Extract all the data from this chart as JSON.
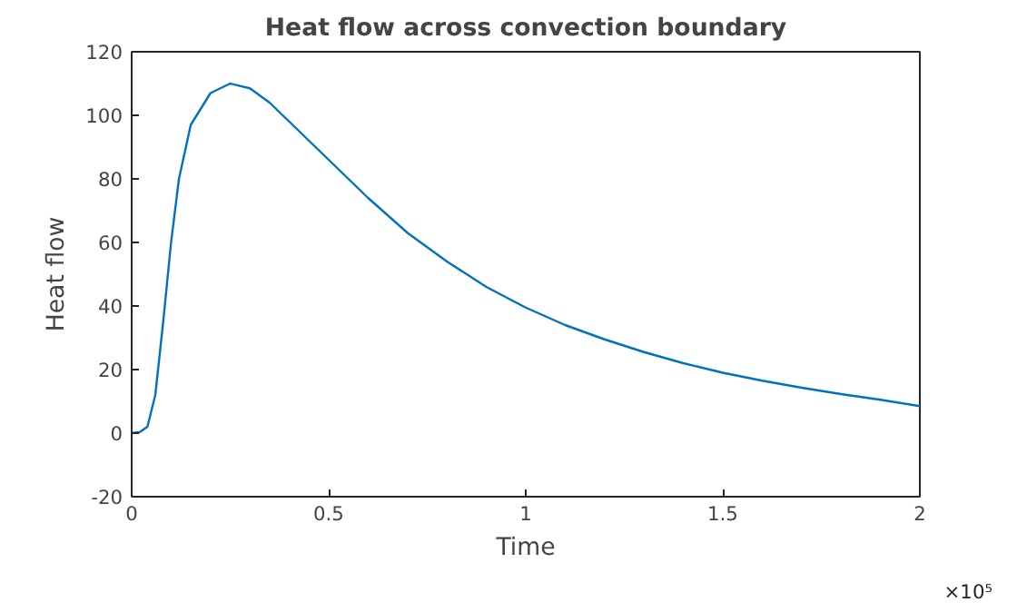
{
  "chart_data": {
    "type": "line",
    "title": "Heat flow across convection boundary",
    "xlabel": "Time",
    "ylabel": "Heat flow",
    "x": [
      0,
      0.02,
      0.04,
      0.06,
      0.08,
      0.1,
      0.12,
      0.15,
      0.2,
      0.25,
      0.3,
      0.35,
      0.4,
      0.5,
      0.6,
      0.7,
      0.8,
      0.9,
      1,
      1.1,
      1.2,
      1.3,
      1.4,
      1.5,
      1.6,
      1.7,
      1.8,
      1.9,
      2
    ],
    "series": [
      {
        "color": "#0072bd",
        "values": [
          0,
          0.3,
          2,
          12,
          35,
          60,
          80,
          97,
          107,
          110,
          108.5,
          104,
          98,
          86,
          74,
          63,
          54,
          46,
          39.5,
          34,
          29.5,
          25.5,
          22,
          19,
          16.5,
          14.3,
          12.3,
          10.5,
          8.5
        ]
      }
    ],
    "xlim": [
      0,
      2
    ],
    "ylim": [
      -20,
      120
    ],
    "xticks": [
      0,
      0.5,
      1,
      1.5,
      2
    ],
    "yticks": [
      -20,
      0,
      20,
      40,
      60,
      80,
      100,
      120
    ],
    "annotations": [
      "×10⁵"
    ],
    "grid": false,
    "marker": "none",
    "line_style": "solid"
  }
}
